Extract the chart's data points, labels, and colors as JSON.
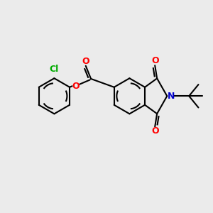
{
  "bg_color": "#ebebeb",
  "bond_color": "#000000",
  "bond_width": 1.5,
  "atom_colors": {
    "O": "#ff0000",
    "N": "#0000cc",
    "Cl": "#00aa00",
    "C": "#000000"
  },
  "font_size": 8.5,
  "xlim": [
    0,
    10
  ],
  "ylim": [
    1,
    9
  ]
}
